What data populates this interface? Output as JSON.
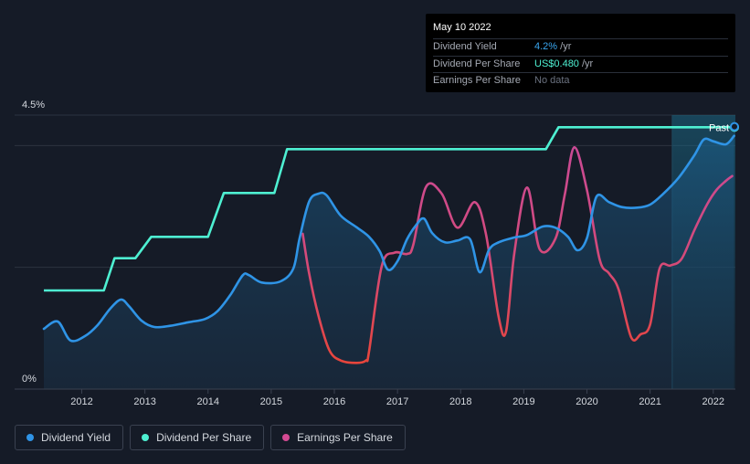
{
  "tooltip": {
    "date": "May 10 2022",
    "rows": [
      {
        "label": "Dividend Yield",
        "value": "4.2%",
        "unit": " /yr"
      },
      {
        "label": "Dividend Per Share",
        "value": "US$0.480",
        "unit": " /yr"
      },
      {
        "label": "Earnings Per Share",
        "value": "No data",
        "unit": ""
      }
    ]
  },
  "past_label": "Past",
  "legend": [
    {
      "label": "Dividend Yield",
      "color": "#2f94e6"
    },
    {
      "label": "Dividend Per Share",
      "color": "#4ef0d2"
    },
    {
      "label": "Earnings Per Share",
      "color": "#d44a93"
    }
  ],
  "chart_data": {
    "type": "line",
    "title": "",
    "y_axis_labels": [
      "4.5%",
      "0%"
    ],
    "ylim": [
      0,
      4.5
    ],
    "xlim": [
      2011.4,
      2022.35
    ],
    "x_ticks": [
      2012,
      2013,
      2014,
      2015,
      2016,
      2017,
      2018,
      2019,
      2020,
      2021,
      2022
    ],
    "past_region_start": 2021.35,
    "series": [
      {
        "name": "Dividend Yield",
        "unit": "%",
        "color": "#2f94e6",
        "points": [
          [
            2011.4,
            0.99
          ],
          [
            2011.62,
            1.11
          ],
          [
            2011.82,
            0.8
          ],
          [
            2012.05,
            0.87
          ],
          [
            2012.25,
            1.05
          ],
          [
            2012.45,
            1.32
          ],
          [
            2012.62,
            1.47
          ],
          [
            2012.75,
            1.36
          ],
          [
            2012.95,
            1.12
          ],
          [
            2013.15,
            1.02
          ],
          [
            2013.4,
            1.04
          ],
          [
            2013.7,
            1.1
          ],
          [
            2013.95,
            1.15
          ],
          [
            2014.15,
            1.28
          ],
          [
            2014.35,
            1.54
          ],
          [
            2014.55,
            1.87
          ],
          [
            2014.65,
            1.87
          ],
          [
            2014.85,
            1.75
          ],
          [
            2015.15,
            1.77
          ],
          [
            2015.35,
            1.98
          ],
          [
            2015.45,
            2.48
          ],
          [
            2015.6,
            3.08
          ],
          [
            2015.75,
            3.21
          ],
          [
            2015.88,
            3.18
          ],
          [
            2016.1,
            2.85
          ],
          [
            2016.35,
            2.66
          ],
          [
            2016.55,
            2.5
          ],
          [
            2016.72,
            2.26
          ],
          [
            2016.85,
            1.96
          ],
          [
            2017.0,
            2.1
          ],
          [
            2017.15,
            2.46
          ],
          [
            2017.3,
            2.7
          ],
          [
            2017.42,
            2.8
          ],
          [
            2017.55,
            2.56
          ],
          [
            2017.75,
            2.41
          ],
          [
            2017.95,
            2.44
          ],
          [
            2018.15,
            2.46
          ],
          [
            2018.3,
            1.92
          ],
          [
            2018.45,
            2.29
          ],
          [
            2018.6,
            2.41
          ],
          [
            2018.85,
            2.49
          ],
          [
            2019.05,
            2.53
          ],
          [
            2019.3,
            2.67
          ],
          [
            2019.5,
            2.65
          ],
          [
            2019.7,
            2.5
          ],
          [
            2019.85,
            2.28
          ],
          [
            2020.0,
            2.48
          ],
          [
            2020.15,
            3.16
          ],
          [
            2020.35,
            3.07
          ],
          [
            2020.55,
            2.99
          ],
          [
            2020.8,
            2.98
          ],
          [
            2021.0,
            3.03
          ],
          [
            2021.2,
            3.2
          ],
          [
            2021.45,
            3.47
          ],
          [
            2021.7,
            3.84
          ],
          [
            2021.85,
            4.1
          ],
          [
            2022.0,
            4.07
          ],
          [
            2022.2,
            4.02
          ],
          [
            2022.33,
            4.16
          ]
        ]
      },
      {
        "name": "Dividend Per Share",
        "unit": "US$",
        "color": "#4ef0d2",
        "points": [
          [
            2011.4,
            1.62
          ],
          [
            2012.35,
            1.62
          ],
          [
            2012.52,
            2.15
          ],
          [
            2012.85,
            2.15
          ],
          [
            2013.1,
            2.5
          ],
          [
            2014.0,
            2.5
          ],
          [
            2014.25,
            3.22
          ],
          [
            2014.85,
            3.22
          ],
          [
            2015.05,
            3.22
          ],
          [
            2015.25,
            3.94
          ],
          [
            2016.0,
            3.94
          ],
          [
            2019.35,
            3.94
          ],
          [
            2019.55,
            4.3
          ],
          [
            2022.35,
            4.3
          ]
        ]
      },
      {
        "name": "Earnings Per Share",
        "unit": "US$",
        "color": "#d44a93",
        "points": [
          [
            2015.5,
            2.55
          ],
          [
            2015.6,
            1.9
          ],
          [
            2015.75,
            1.2
          ],
          [
            2015.92,
            0.64
          ],
          [
            2016.1,
            0.47
          ],
          [
            2016.35,
            0.43
          ],
          [
            2016.5,
            0.47
          ],
          [
            2016.55,
            0.62
          ],
          [
            2016.75,
            2.02
          ],
          [
            2016.95,
            2.24
          ],
          [
            2017.15,
            2.22
          ],
          [
            2017.25,
            2.37
          ],
          [
            2017.45,
            3.32
          ],
          [
            2017.7,
            3.21
          ],
          [
            2017.95,
            2.65
          ],
          [
            2018.22,
            3.07
          ],
          [
            2018.4,
            2.55
          ],
          [
            2018.6,
            1.19
          ],
          [
            2018.72,
            0.95
          ],
          [
            2018.85,
            2.23
          ],
          [
            2019.05,
            3.31
          ],
          [
            2019.25,
            2.3
          ],
          [
            2019.5,
            2.47
          ],
          [
            2019.65,
            3.2
          ],
          [
            2019.8,
            3.97
          ],
          [
            2020.0,
            3.27
          ],
          [
            2020.2,
            2.13
          ],
          [
            2020.35,
            1.9
          ],
          [
            2020.5,
            1.64
          ],
          [
            2020.7,
            0.85
          ],
          [
            2020.85,
            0.9
          ],
          [
            2021.0,
            1.06
          ],
          [
            2021.15,
            1.98
          ],
          [
            2021.32,
            2.03
          ],
          [
            2021.5,
            2.14
          ],
          [
            2021.7,
            2.61
          ],
          [
            2021.9,
            3.03
          ],
          [
            2022.05,
            3.27
          ],
          [
            2022.2,
            3.42
          ],
          [
            2022.3,
            3.5
          ]
        ]
      }
    ]
  }
}
